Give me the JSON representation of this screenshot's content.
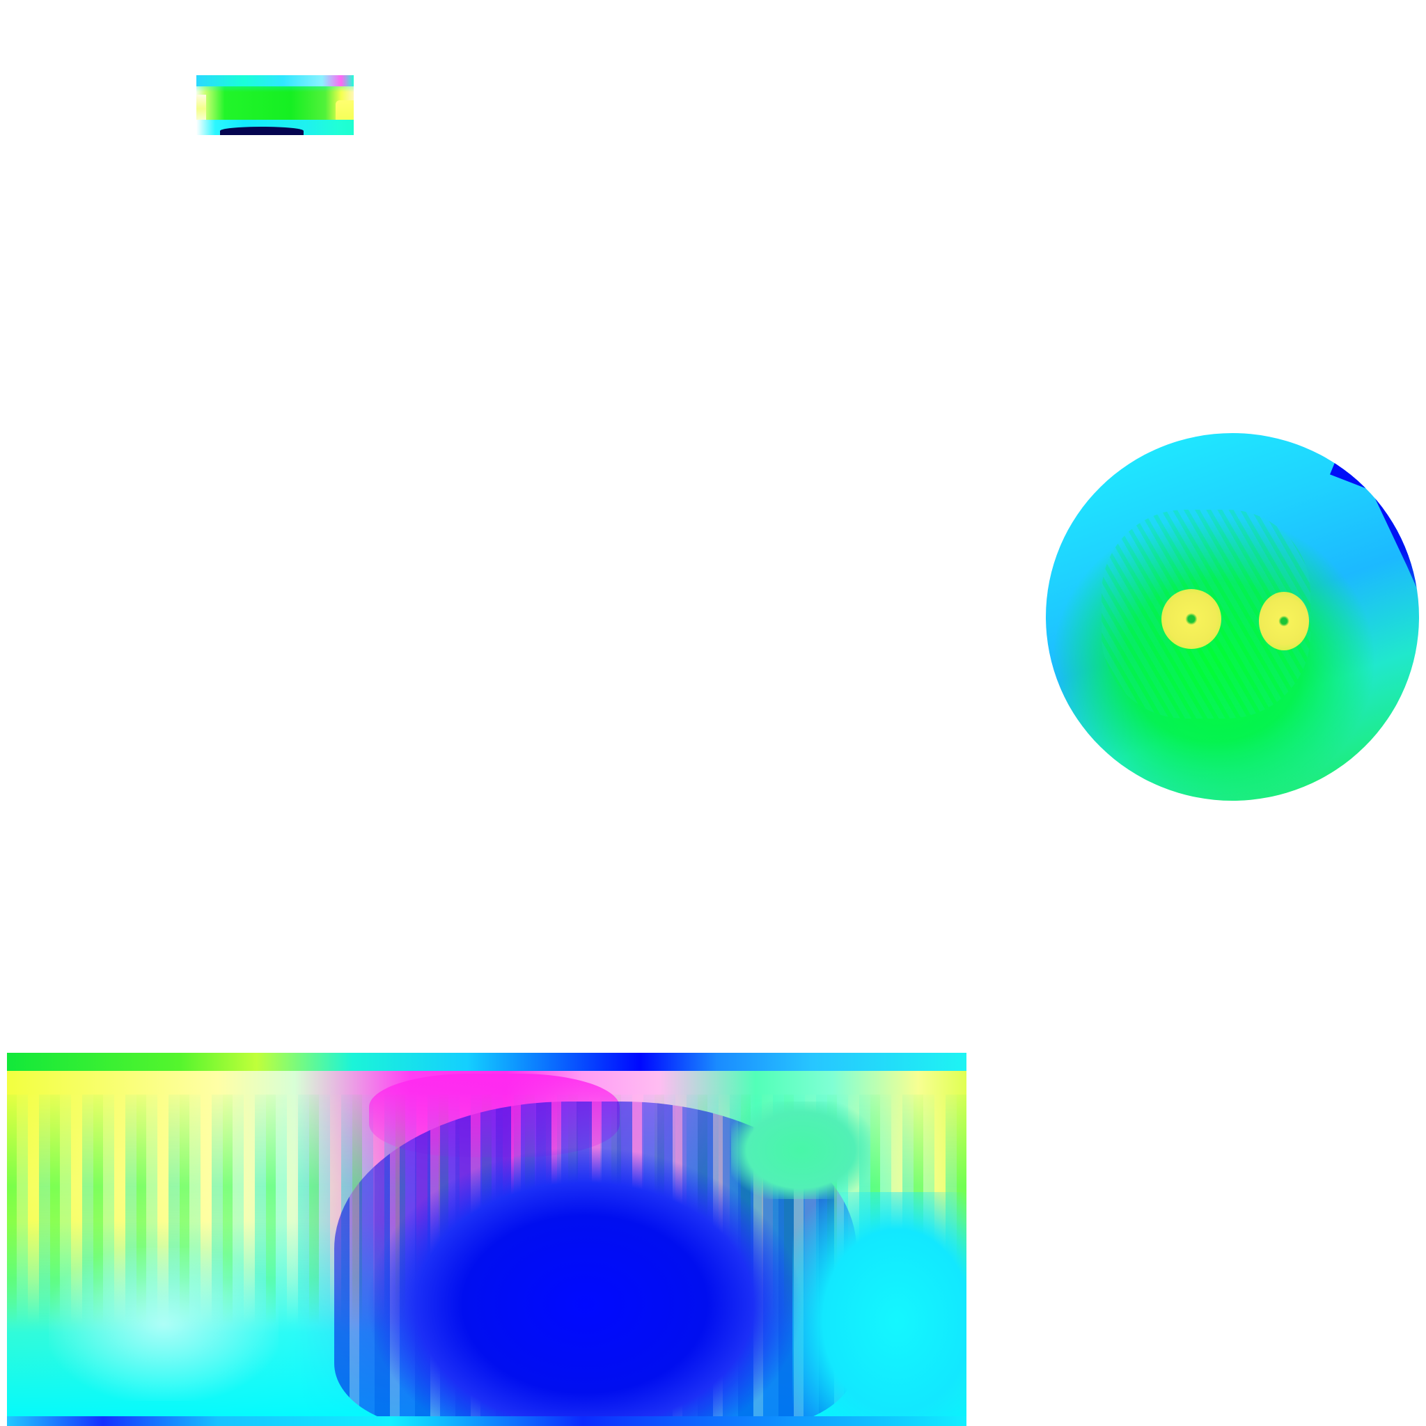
{
  "image": {
    "background": "#ffffff",
    "pieces": [
      {
        "kind": "strip",
        "dominant_colors": [
          "#16ef24",
          "#2fe7ff",
          "#f4ff4e"
        ]
      },
      {
        "kind": "sphere",
        "dominant_colors": [
          "#1fd2ff",
          "#00f52a",
          "#0008ff",
          "#f1ec56"
        ]
      },
      {
        "kind": "panel",
        "dominant_colors": [
          "#f2ff40",
          "#ff2ff0",
          "#0009ff",
          "#00faff"
        ]
      }
    ]
  }
}
